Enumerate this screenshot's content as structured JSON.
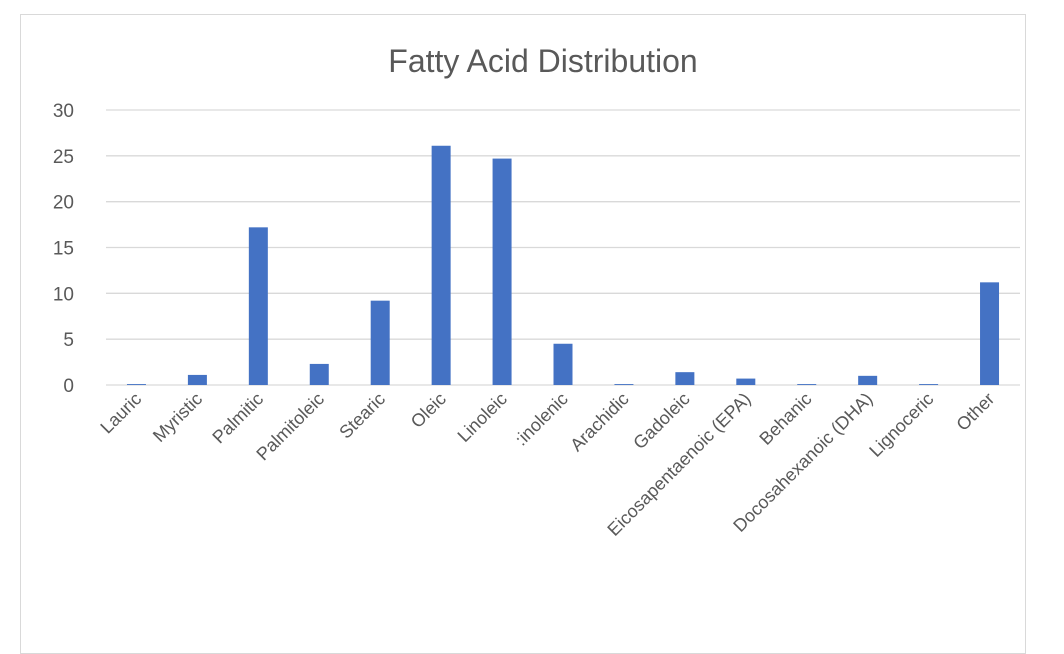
{
  "chart_data": {
    "type": "bar",
    "title": "Fatty Acid Distribution",
    "xlabel": "",
    "ylabel": "",
    "ylim": [
      0,
      30
    ],
    "yticks": [
      0,
      5,
      10,
      15,
      20,
      25,
      30
    ],
    "grid": true,
    "legend": "none",
    "bar_color": "#4472c4",
    "categories": [
      "Lauric",
      "Myristic",
      "Palmitic",
      "Palmitoleic",
      "Stearic",
      "Oleic",
      "Linoleic",
      ":inolenic",
      "Arachidic",
      "Gadoleic",
      "Eicosapentaenoic (EPA)",
      "Behanic",
      "Docosahexanoic (DHA)",
      "Lignoceric",
      "Other"
    ],
    "values": [
      0.1,
      1.1,
      17.2,
      2.3,
      9.2,
      26.1,
      24.7,
      4.5,
      0.1,
      1.4,
      0.7,
      0.1,
      1.0,
      0.1,
      11.2
    ]
  }
}
